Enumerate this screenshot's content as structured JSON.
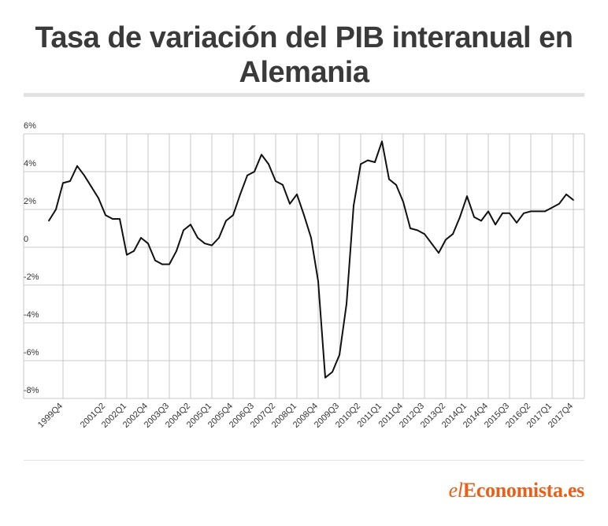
{
  "title": "Tasa de variación del PIB interanual en Alemania",
  "brand": {
    "prefix": "el",
    "name": "Economista.es",
    "color": "#e8611a"
  },
  "chart_data": {
    "type": "line",
    "title": "Tasa de variación del PIB interanual en Alemania",
    "xlabel": "",
    "ylabel": "",
    "ylim": [
      -8,
      6
    ],
    "yticks": [
      {
        "v": 6,
        "label": "6%"
      },
      {
        "v": 4,
        "label": "4%"
      },
      {
        "v": 2,
        "label": "2%"
      },
      {
        "v": 0,
        "label": "0"
      },
      {
        "v": -2,
        "label": "-2%"
      },
      {
        "v": -4,
        "label": "-4%"
      },
      {
        "v": -6,
        "label": "-6%"
      },
      {
        "v": -8,
        "label": "-8%"
      }
    ],
    "x_labels": [
      "1999Q4",
      "2001Q2",
      "2002Q1",
      "2002Q4",
      "2003Q3",
      "2004Q2",
      "2005Q1",
      "2005Q4",
      "2006Q3",
      "2007Q2",
      "2008Q1",
      "2008Q4",
      "2009Q3",
      "2010Q2",
      "2011Q1",
      "2011Q4",
      "2012Q3",
      "2013Q2",
      "2014Q1",
      "2014Q4",
      "2015Q3",
      "2016Q2",
      "2017Q1",
      "2017Q4"
    ],
    "x": [
      "1999Q2",
      "1999Q3",
      "1999Q4",
      "2000Q1",
      "2000Q2",
      "2000Q3",
      "2000Q4",
      "2001Q1",
      "2001Q2",
      "2001Q3",
      "2001Q4",
      "2002Q1",
      "2002Q2",
      "2002Q3",
      "2002Q4",
      "2003Q1",
      "2003Q2",
      "2003Q3",
      "2003Q4",
      "2004Q1",
      "2004Q2",
      "2004Q3",
      "2004Q4",
      "2005Q1",
      "2005Q2",
      "2005Q3",
      "2005Q4",
      "2006Q1",
      "2006Q2",
      "2006Q3",
      "2006Q4",
      "2007Q1",
      "2007Q2",
      "2007Q3",
      "2007Q4",
      "2008Q1",
      "2008Q2",
      "2008Q3",
      "2008Q4",
      "2009Q1",
      "2009Q2",
      "2009Q3",
      "2009Q4",
      "2010Q1",
      "2010Q2",
      "2010Q3",
      "2010Q4",
      "2011Q1",
      "2011Q2",
      "2011Q3",
      "2011Q4",
      "2012Q1",
      "2012Q2",
      "2012Q3",
      "2012Q4",
      "2013Q1",
      "2013Q2",
      "2013Q3",
      "2013Q4",
      "2014Q1",
      "2014Q2",
      "2014Q3",
      "2014Q4",
      "2015Q1",
      "2015Q2",
      "2015Q3",
      "2015Q4",
      "2016Q1",
      "2016Q2",
      "2016Q3",
      "2016Q4",
      "2017Q1",
      "2017Q2",
      "2017Q3",
      "2017Q4"
    ],
    "values": [
      1.4,
      2.0,
      3.4,
      3.5,
      4.3,
      3.8,
      3.2,
      2.6,
      1.7,
      1.5,
      1.5,
      -0.4,
      -0.2,
      0.5,
      0.2,
      -0.7,
      -0.9,
      -0.9,
      -0.2,
      0.9,
      1.2,
      0.5,
      0.2,
      0.1,
      0.5,
      1.4,
      1.7,
      2.8,
      3.8,
      4.0,
      4.9,
      4.4,
      3.5,
      3.3,
      2.3,
      2.8,
      1.7,
      0.5,
      -1.8,
      -6.9,
      -6.6,
      -5.7,
      -3.0,
      2.2,
      4.4,
      4.6,
      4.5,
      5.6,
      3.6,
      3.3,
      2.4,
      1.0,
      0.9,
      0.7,
      0.2,
      -0.3,
      0.4,
      0.7,
      1.6,
      2.7,
      1.6,
      1.4,
      1.9,
      1.2,
      1.8,
      1.8,
      1.3,
      1.8,
      1.9,
      1.9,
      1.9,
      2.1,
      2.3,
      2.8,
      2.5
    ],
    "grid": true,
    "legend": "none"
  }
}
